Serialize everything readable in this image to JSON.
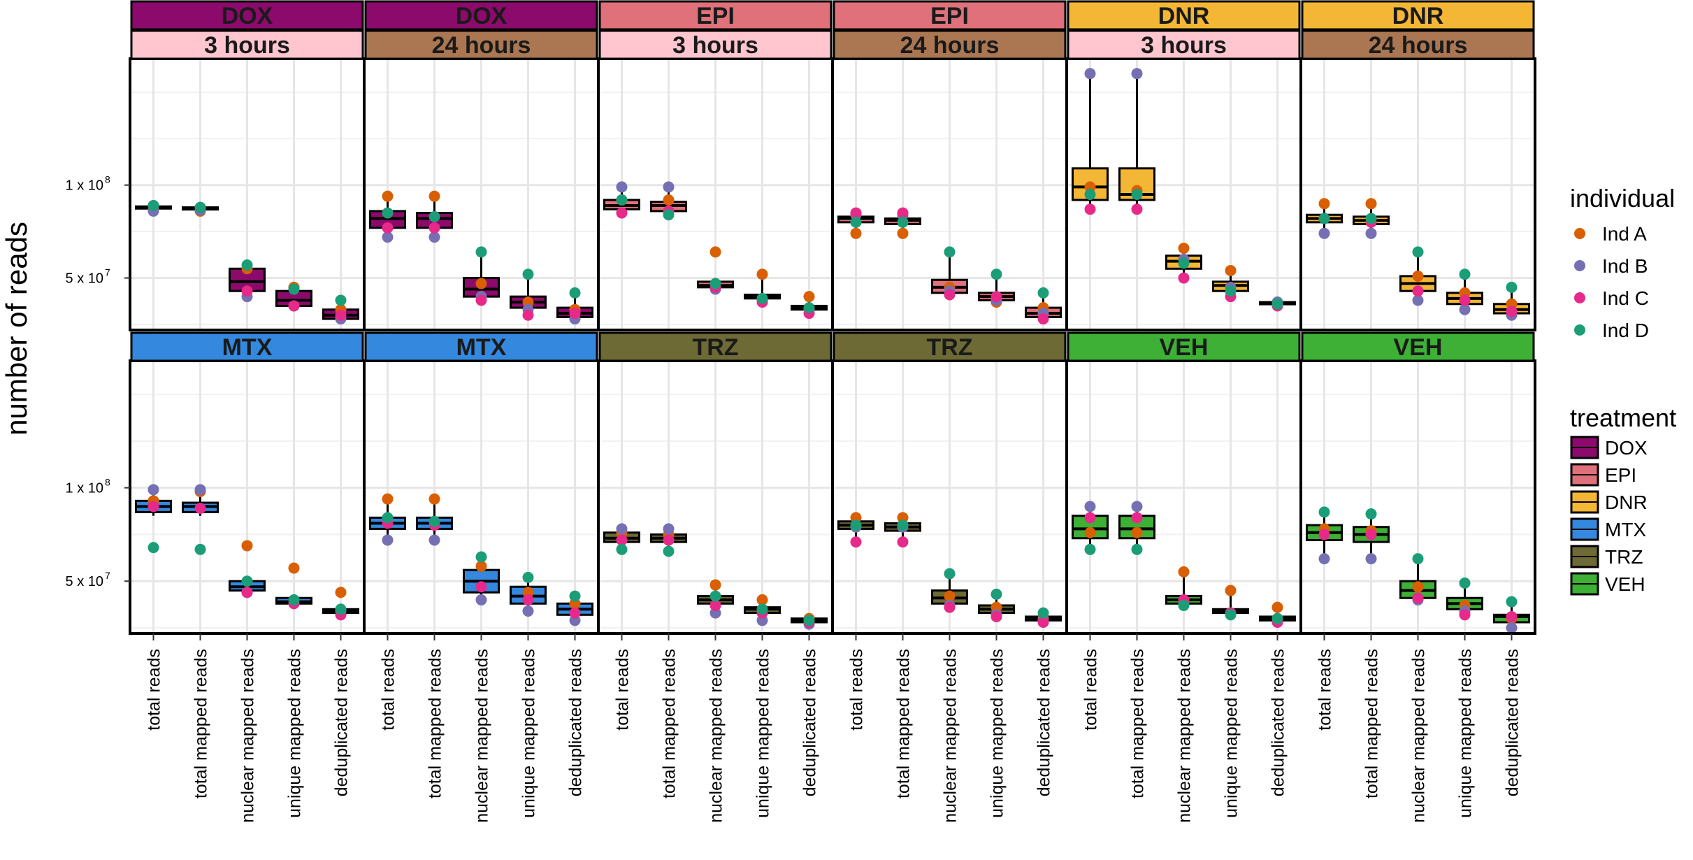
{
  "chart_data": {
    "type": "box",
    "ylabel": "number of reads",
    "y_ticks": [
      {
        "value": 50000000,
        "label": "5 x 10",
        "exp": "7"
      },
      {
        "value": 100000000,
        "label": "1 x 10",
        "exp": "8"
      }
    ],
    "categories": [
      "total reads",
      "total mapped reads",
      "nuclear mapped reads",
      "unique mapped reads",
      "deduplicated reads"
    ],
    "colors": {
      "individuals": {
        "Ind A": "#D95F02",
        "Ind B": "#7570B3",
        "Ind C": "#E7298A",
        "Ind D": "#1B9E77"
      },
      "treatments": {
        "DOX": "#8B0A6B",
        "EPI": "#E0707A",
        "DNR": "#F4B735",
        "MTX": "#3488DE",
        "TRZ": "#6E6A35",
        "VEH": "#3DB035"
      },
      "time": {
        "3 hours": "#FFC6D0",
        "24 hours": "#AA7752"
      }
    },
    "legend": {
      "individual_title": "individual",
      "individuals": [
        "Ind A",
        "Ind B",
        "Ind C",
        "Ind D"
      ],
      "treatment_title": "treatment",
      "treatments": [
        "DOX",
        "EPI",
        "DNR",
        "MTX",
        "TRZ",
        "VEH"
      ],
      "position": "right"
    },
    "panels": [
      {
        "treatment": "DOX",
        "time": "3 hours",
        "boxes": [
          [
            87.5,
            88,
            88,
            88.5,
            89
          ],
          [
            86.5,
            87,
            87.5,
            88,
            88.5
          ],
          [
            40,
            43,
            48,
            55,
            57
          ],
          [
            33,
            35,
            38,
            43,
            45
          ],
          [
            26,
            28,
            30,
            33,
            35
          ]
        ],
        "points": [
          [
            87,
            86,
            89,
            89
          ],
          [
            86,
            86.5,
            88,
            88
          ],
          [
            55,
            40,
            43,
            57
          ],
          [
            45,
            35,
            35,
            44
          ],
          [
            33,
            28,
            30,
            38
          ]
        ]
      },
      {
        "treatment": "DOX",
        "time": "24 hours",
        "boxes": [
          [
            72,
            77,
            82,
            86,
            94
          ],
          [
            72,
            77,
            82,
            85,
            94
          ],
          [
            38,
            40,
            44,
            50,
            64
          ],
          [
            32,
            34,
            37,
            40,
            52
          ],
          [
            27,
            29,
            31,
            34,
            42
          ]
        ],
        "points": [
          [
            94,
            72,
            77,
            85
          ],
          [
            94,
            72,
            77,
            83
          ],
          [
            47,
            40,
            38,
            64
          ],
          [
            37,
            33,
            30,
            52
          ],
          [
            33,
            28,
            31,
            42
          ]
        ]
      },
      {
        "treatment": "EPI",
        "time": "3 hours",
        "boxes": [
          [
            85,
            87,
            89,
            92,
            99
          ],
          [
            84,
            86,
            89,
            91,
            99
          ],
          [
            44,
            45,
            46,
            48,
            50
          ],
          [
            38,
            39,
            40,
            41,
            52
          ],
          [
            31,
            33,
            34,
            35,
            40
          ]
        ],
        "points": [
          [
            92,
            99,
            85,
            92
          ],
          [
            92,
            99,
            86,
            84
          ],
          [
            64,
            44,
            45,
            47
          ],
          [
            52,
            38,
            37,
            39
          ],
          [
            40,
            33,
            31,
            34
          ]
        ]
      },
      {
        "treatment": "EPI",
        "time": "24 hours",
        "boxes": [
          [
            74,
            80,
            82,
            83,
            85
          ],
          [
            74,
            79,
            81,
            82,
            85
          ],
          [
            41,
            42,
            45,
            49,
            64
          ],
          [
            37,
            38,
            40,
            42,
            52
          ],
          [
            27,
            29,
            31,
            34,
            42
          ]
        ],
        "points": [
          [
            74,
            84,
            85,
            80
          ],
          [
            74,
            84,
            85,
            80
          ],
          [
            45,
            43,
            41,
            64
          ],
          [
            37,
            38,
            40,
            52
          ],
          [
            34,
            31,
            28,
            42
          ]
        ]
      },
      {
        "treatment": "DNR",
        "time": "3 hours",
        "boxes": [
          [
            87,
            92,
            99,
            109,
            160
          ],
          [
            87,
            92,
            95,
            109,
            160
          ],
          [
            50,
            55,
            59,
            62,
            66
          ],
          [
            40,
            43,
            46,
            48,
            54
          ],
          [
            35.5,
            36,
            36.5,
            37,
            37.5
          ]
        ],
        "points": [
          [
            99,
            160,
            87,
            95
          ],
          [
            97,
            160,
            87,
            95
          ],
          [
            66,
            60,
            50,
            58
          ],
          [
            54,
            45,
            40,
            43
          ],
          [
            37,
            37,
            35,
            36
          ]
        ]
      },
      {
        "treatment": "DNR",
        "time": "24 hours",
        "boxes": [
          [
            74,
            80,
            82,
            84,
            90
          ],
          [
            74,
            79,
            81,
            83,
            90
          ],
          [
            38,
            43,
            47,
            51,
            64
          ],
          [
            33,
            36,
            39,
            42,
            52
          ],
          [
            30,
            31,
            33,
            36,
            45
          ]
        ],
        "points": [
          [
            90,
            74,
            82,
            82
          ],
          [
            90,
            74,
            80,
            82
          ],
          [
            51,
            38,
            43,
            64
          ],
          [
            42,
            33,
            38,
            52
          ],
          [
            36,
            30,
            32,
            45
          ]
        ]
      },
      {
        "treatment": "MTX",
        "time": "3 hours",
        "boxes": [
          [
            85,
            87,
            90,
            93,
            99
          ],
          [
            85,
            87,
            90,
            92,
            99
          ],
          [
            44,
            45,
            47,
            50,
            51
          ],
          [
            37,
            38,
            39,
            41,
            42
          ],
          [
            32,
            33,
            34,
            35,
            36
          ]
        ],
        "points": [
          [
            93,
            99,
            90,
            68
          ],
          [
            98,
            99,
            89,
            67
          ],
          [
            69,
            44,
            44,
            50
          ],
          [
            57,
            38,
            38,
            40
          ],
          [
            44,
            34,
            32,
            35
          ]
        ]
      },
      {
        "treatment": "MTX",
        "time": "24 hours",
        "boxes": [
          [
            72,
            78,
            81,
            84,
            94
          ],
          [
            72,
            78,
            81,
            84,
            94
          ],
          [
            40,
            44,
            50,
            56,
            63
          ],
          [
            34,
            38,
            42,
            47,
            52
          ],
          [
            29,
            32,
            35,
            38,
            42
          ]
        ],
        "points": [
          [
            94,
            72,
            81,
            84
          ],
          [
            94,
            72,
            80,
            82
          ],
          [
            58,
            40,
            47,
            63
          ],
          [
            44,
            34,
            40,
            52
          ],
          [
            38,
            29,
            33,
            42
          ]
        ]
      },
      {
        "treatment": "TRZ",
        "time": "3 hours",
        "boxes": [
          [
            68,
            71,
            73,
            76,
            78
          ],
          [
            67,
            71,
            73,
            75,
            78
          ],
          [
            36,
            38,
            40,
            42,
            48
          ],
          [
            31,
            33,
            35,
            36,
            40
          ],
          [
            27,
            28,
            29,
            30,
            31
          ]
        ],
        "points": [
          [
            76,
            78,
            72,
            67
          ],
          [
            75,
            78,
            72,
            66
          ],
          [
            48,
            33,
            37,
            42
          ],
          [
            40,
            29,
            33,
            35
          ],
          [
            30,
            27,
            28,
            29
          ]
        ]
      },
      {
        "treatment": "TRZ",
        "time": "24 hours",
        "boxes": [
          [
            71,
            78,
            80,
            82,
            84
          ],
          [
            71,
            77,
            79,
            81,
            84
          ],
          [
            36,
            38,
            41,
            45,
            54
          ],
          [
            31,
            33,
            35,
            37,
            43
          ],
          [
            28,
            29,
            30,
            31,
            33
          ]
        ],
        "points": [
          [
            84,
            79,
            71,
            80
          ],
          [
            84,
            79,
            71,
            80
          ],
          [
            42,
            37,
            36,
            54
          ],
          [
            36,
            32,
            31,
            43
          ],
          [
            30,
            29,
            28,
            33
          ]
        ]
      },
      {
        "treatment": "VEH",
        "time": "3 hours",
        "boxes": [
          [
            67,
            73,
            78,
            85,
            90
          ],
          [
            67,
            73,
            78,
            85,
            90
          ],
          [
            36,
            38,
            40,
            42,
            55
          ],
          [
            32,
            33,
            34,
            35,
            45
          ],
          [
            28,
            29,
            30,
            31,
            36
          ]
        ],
        "points": [
          [
            76,
            90,
            84,
            67
          ],
          [
            76,
            90,
            84,
            67
          ],
          [
            55,
            38,
            40,
            37
          ],
          [
            45,
            33,
            33,
            32
          ],
          [
            36,
            30,
            28,
            30
          ]
        ]
      },
      {
        "treatment": "VEH",
        "time": "24 hours",
        "boxes": [
          [
            62,
            72,
            76,
            80,
            87
          ],
          [
            62,
            71,
            75,
            79,
            86
          ],
          [
            38,
            41,
            45,
            50,
            62
          ],
          [
            32,
            35,
            38,
            41,
            49
          ],
          [
            25,
            28,
            31,
            32,
            39
          ]
        ],
        "points": [
          [
            78,
            62,
            75,
            87
          ],
          [
            77,
            62,
            75,
            86
          ],
          [
            47,
            40,
            41,
            62
          ],
          [
            37,
            34,
            32,
            49
          ],
          [
            30,
            25,
            31,
            39
          ]
        ]
      }
    ]
  }
}
